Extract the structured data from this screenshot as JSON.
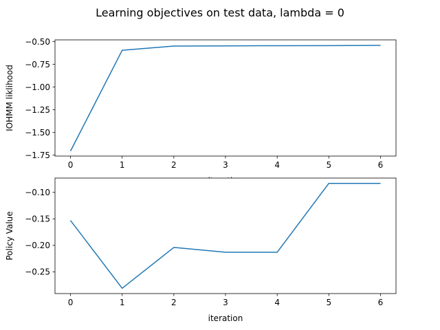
{
  "chart_data": {
    "title": "Learning objectives on test data, lambda = 0",
    "subplots": [
      {
        "type": "line",
        "xlabel": "iteration",
        "ylabel": "IOHMM liklihood",
        "xlim": [
          -0.3,
          6.3
        ],
        "ylim": [
          -1.76,
          -0.48
        ],
        "xticks": [
          0,
          1,
          2,
          3,
          4,
          5,
          6
        ],
        "yticks": [
          -1.75,
          -1.5,
          -1.25,
          -1.0,
          -0.75,
          -0.5
        ],
        "ytick_labels": [
          "−1.75",
          "−1.50",
          "−1.25",
          "−1.00",
          "−0.75",
          "−0.50"
        ],
        "color": "#1f77b4",
        "grid": false,
        "x": [
          0,
          1,
          2,
          3,
          4,
          5,
          6
        ],
        "y": [
          -1.705,
          -0.595,
          -0.548,
          -0.546,
          -0.544,
          -0.543,
          -0.541
        ]
      },
      {
        "type": "line",
        "xlabel": "iteration",
        "ylabel": "Policy Value",
        "xlim": [
          -0.3,
          6.3
        ],
        "ylim": [
          -0.291,
          -0.073
        ],
        "xticks": [
          0,
          1,
          2,
          3,
          4,
          5,
          6
        ],
        "yticks": [
          -0.25,
          -0.2,
          -0.15,
          -0.1
        ],
        "ytick_labels": [
          "−0.25",
          "−0.20",
          "−0.15",
          "−0.10"
        ],
        "color": "#1f77b4",
        "grid": false,
        "x": [
          0,
          1,
          2,
          3,
          4,
          5,
          6
        ],
        "y": [
          -0.153,
          -0.281,
          -0.204,
          -0.213,
          -0.213,
          -0.083,
          -0.083
        ]
      }
    ]
  }
}
